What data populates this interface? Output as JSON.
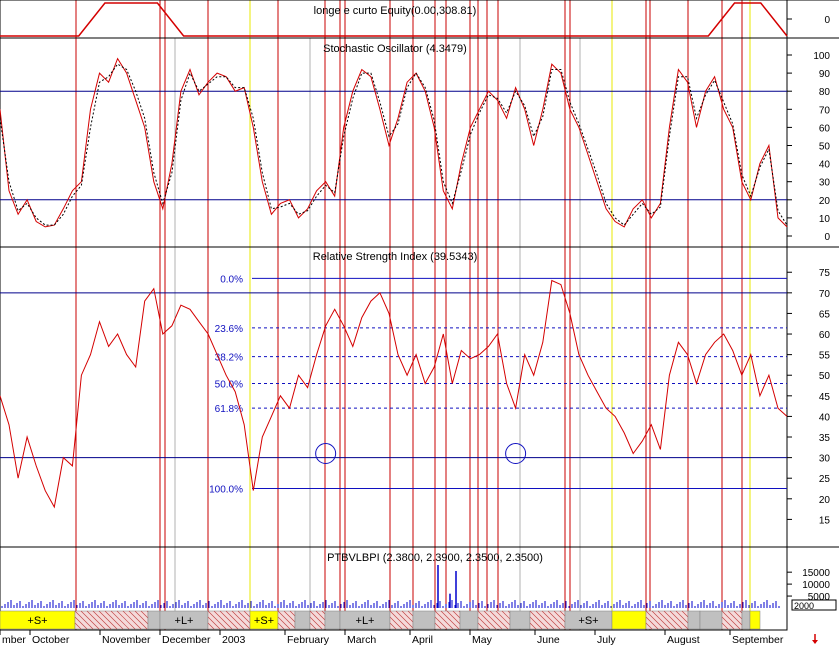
{
  "colors": {
    "price": "#d40000",
    "dotted": "#000000",
    "hline": "#00008b",
    "fib": "#1010c0",
    "vred": "#c80000",
    "vyellow": "#e8e800",
    "vgray": "#b0b0b0",
    "volume": "#0000cc",
    "axis": "#000000",
    "circle": "#1010c0"
  },
  "corner_icon": "down-arrow-icon",
  "chart_data": [
    {
      "type": "line",
      "title": "longe e curto Equity(0.00,308.81)",
      "y_ticks": [
        "0"
      ],
      "series": [
        {
          "values": [
            0,
            0,
            0,
            0,
            1,
            1,
            1,
            0,
            0,
            0,
            0,
            0,
            0,
            0,
            0,
            0,
            0,
            0,
            0,
            0,
            0,
            0,
            0,
            0,
            0,
            0,
            0,
            0,
            1,
            1,
            0
          ]
        }
      ]
    },
    {
      "type": "line",
      "title": "Stochastic Oscillator (4.3479)",
      "ylim": [
        0,
        100
      ],
      "y_ticks": [
        "100",
        "90",
        "80",
        "70",
        "60",
        "50",
        "40",
        "30",
        "20",
        "10",
        "0"
      ],
      "reference_lines": [
        80,
        20
      ],
      "series": [
        {
          "style": "solid",
          "values": [
            70,
            25,
            12,
            20,
            8,
            5,
            6,
            15,
            25,
            30,
            70,
            90,
            85,
            98,
            90,
            75,
            60,
            30,
            15,
            40,
            80,
            92,
            78,
            85,
            90,
            88,
            80,
            82,
            60,
            30,
            12,
            18,
            20,
            10,
            15,
            25,
            30,
            22,
            60,
            80,
            92,
            88,
            70,
            50,
            65,
            85,
            90,
            80,
            60,
            25,
            15,
            40,
            60,
            70,
            80,
            75,
            65,
            82,
            70,
            50,
            70,
            95,
            90,
            70,
            60,
            45,
            30,
            15,
            8,
            5,
            15,
            20,
            10,
            18,
            60,
            92,
            85,
            60,
            80,
            88,
            70,
            60,
            30,
            20,
            40,
            50,
            10,
            5
          ]
        },
        {
          "style": "dotted",
          "values": [
            65,
            30,
            14,
            18,
            10,
            6,
            6,
            12,
            22,
            28,
            60,
            85,
            88,
            95,
            92,
            80,
            65,
            35,
            18,
            35,
            75,
            90,
            80,
            84,
            88,
            88,
            82,
            82,
            65,
            35,
            15,
            16,
            18,
            12,
            14,
            22,
            28,
            24,
            55,
            76,
            90,
            90,
            74,
            55,
            62,
            82,
            90,
            82,
            64,
            30,
            18,
            36,
            56,
            68,
            78,
            76,
            68,
            80,
            72,
            55,
            66,
            92,
            92,
            74,
            62,
            48,
            34,
            18,
            10,
            6,
            12,
            18,
            12,
            16,
            55,
            88,
            88,
            65,
            78,
            86,
            74,
            62,
            34,
            22,
            38,
            48,
            14,
            6
          ]
        }
      ]
    },
    {
      "type": "line",
      "title": "Relative Strength Index (39.5343)",
      "ylim": [
        10,
        77
      ],
      "y_ticks": [
        "75",
        "70",
        "65",
        "60",
        "55",
        "50",
        "45",
        "40",
        "35",
        "30",
        "25",
        "20",
        "15"
      ],
      "reference_lines": [
        70,
        30
      ],
      "fib_levels": [
        {
          "label": "0.0%",
          "value": 73.5
        },
        {
          "label": "23.6%",
          "value": 61.5
        },
        {
          "label": "38.2%",
          "value": 54.5
        },
        {
          "label": "50.0%",
          "value": 48
        },
        {
          "label": "61.8%",
          "value": 42
        },
        {
          "label": "100.0%",
          "value": 22.5
        }
      ],
      "circled_points": [
        {
          "index": 36,
          "value": 31
        },
        {
          "index": 57,
          "value": 31
        }
      ],
      "series": [
        {
          "values": [
            45,
            38,
            25,
            35,
            28,
            22,
            18,
            30,
            28,
            50,
            55,
            63,
            57,
            60,
            55,
            52,
            68,
            71,
            60,
            62,
            67,
            66,
            63,
            60,
            55,
            50,
            46,
            38,
            22,
            35,
            40,
            45,
            42,
            50,
            47,
            55,
            62,
            66,
            62,
            57,
            64,
            68,
            70,
            65,
            55,
            50,
            55,
            48,
            52,
            60,
            48,
            56,
            54,
            55,
            57,
            60,
            48,
            42,
            55,
            50,
            58,
            73,
            72,
            65,
            55,
            50,
            46,
            42,
            40,
            36,
            31,
            34,
            38,
            32,
            50,
            58,
            55,
            48,
            55,
            58,
            60,
            56,
            50,
            55,
            45,
            50,
            42,
            40
          ]
        }
      ]
    },
    {
      "type": "bar",
      "title": "PTBVLBPI (2.3800, 2.3900, 2.3500, 2.3500)",
      "y_ticks": [
        "15000",
        "10000",
        "5000"
      ],
      "y_label_box": "2000",
      "spikes": [
        {
          "index": 61,
          "value": 18000
        },
        {
          "index": 63,
          "value": 6000
        },
        {
          "index": 64,
          "value": 15500
        }
      ],
      "x_tick_labels": [
        "mber",
        "October",
        "November",
        "December",
        "2003",
        "February",
        "March",
        "April",
        "May",
        "June",
        "July",
        "August",
        "September"
      ],
      "signal_labels": [
        "+S+",
        "+L+",
        "+S+",
        "+L+",
        "+S+"
      ]
    }
  ]
}
